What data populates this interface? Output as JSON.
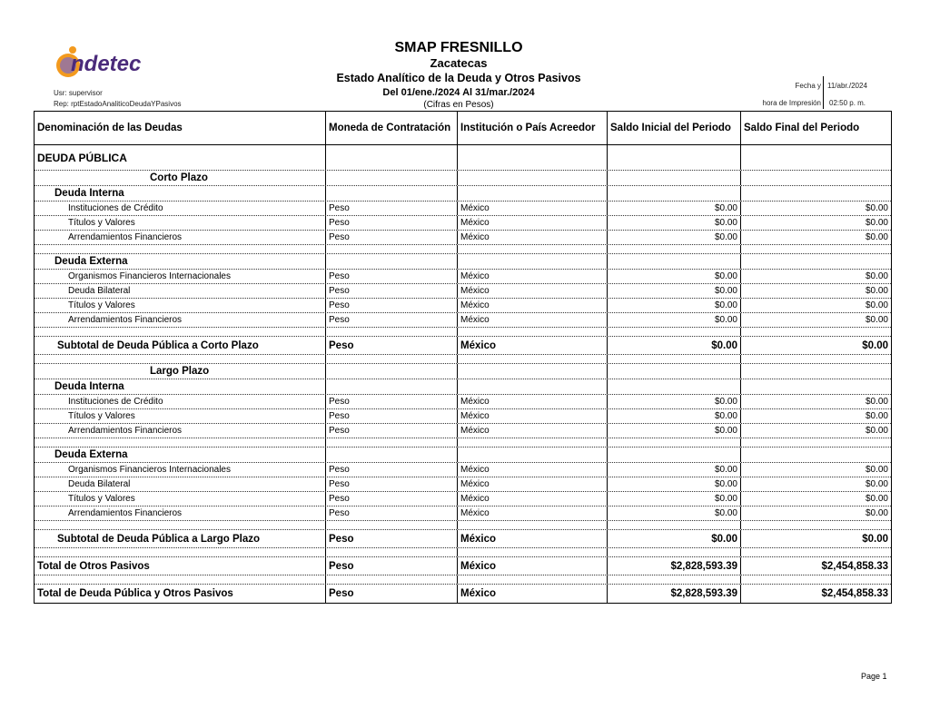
{
  "header": {
    "logo_text": "indetec",
    "org": "SMAP FRESNILLO",
    "state": "Zacatecas",
    "report_title": "Estado Analítico de la Deuda y Otros Pasivos",
    "period": "Del 01/ene./2024 Al 31/mar./2024",
    "units": "(Cifras en Pesos)",
    "user": "Usr: supervisor",
    "report_id": "Rep: rptEstadoAnaliticoDeudaYPasivos",
    "date_label_1": "Fecha y",
    "date_label_2": "hora de Impresión",
    "date_value": "11/abr./2024",
    "time_value": "02:50 p. m."
  },
  "columns": [
    "Denominación de las Deudas",
    "Moneda de Contratación",
    "Institución o País Acreedor",
    "Saldo Inicial del Periodo",
    "Saldo Final del Periodo"
  ],
  "rows": [
    {
      "type": "section",
      "cells": [
        "DEUDA PÚBLICA",
        "",
        "",
        "",
        ""
      ]
    },
    {
      "type": "term",
      "cells": [
        "Corto Plazo",
        "",
        "",
        "",
        ""
      ]
    },
    {
      "type": "group",
      "cells": [
        "Deuda Interna",
        "",
        "",
        "",
        ""
      ]
    },
    {
      "type": "item",
      "cells": [
        "Instituciones de Crédito",
        "Peso",
        "México",
        "$0.00",
        "$0.00"
      ]
    },
    {
      "type": "item",
      "cells": [
        "Títulos y Valores",
        "Peso",
        "México",
        "$0.00",
        "$0.00"
      ]
    },
    {
      "type": "item",
      "cells": [
        "Arrendamientos Financieros",
        "Peso",
        "México",
        "$0.00",
        "$0.00"
      ]
    },
    {
      "type": "blank",
      "cells": [
        "",
        "",
        "",
        "",
        ""
      ]
    },
    {
      "type": "group",
      "cells": [
        "Deuda Externa",
        "",
        "",
        "",
        ""
      ]
    },
    {
      "type": "item",
      "cells": [
        "Organismos Financieros Internacionales",
        "Peso",
        "México",
        "$0.00",
        "$0.00"
      ]
    },
    {
      "type": "item",
      "cells": [
        "Deuda Bilateral",
        "Peso",
        "México",
        "$0.00",
        "$0.00"
      ]
    },
    {
      "type": "item",
      "cells": [
        "Títulos y Valores",
        "Peso",
        "México",
        "$0.00",
        "$0.00"
      ]
    },
    {
      "type": "item",
      "cells": [
        "Arrendamientos Financieros",
        "Peso",
        "México",
        "$0.00",
        "$0.00"
      ]
    },
    {
      "type": "blank",
      "cells": [
        "",
        "",
        "",
        "",
        ""
      ]
    },
    {
      "type": "subtotal",
      "cells": [
        "Subtotal de Deuda Pública a Corto Plazo",
        "Peso",
        "México",
        "$0.00",
        "$0.00"
      ]
    },
    {
      "type": "blank",
      "cells": [
        "",
        "",
        "",
        "",
        ""
      ]
    },
    {
      "type": "term",
      "cells": [
        "Largo Plazo",
        "",
        "",
        "",
        ""
      ]
    },
    {
      "type": "group",
      "cells": [
        "Deuda Interna",
        "",
        "",
        "",
        ""
      ]
    },
    {
      "type": "item",
      "cells": [
        "Instituciones de Crédito",
        "Peso",
        "México",
        "$0.00",
        "$0.00"
      ]
    },
    {
      "type": "item",
      "cells": [
        "Títulos y Valores",
        "Peso",
        "México",
        "$0.00",
        "$0.00"
      ]
    },
    {
      "type": "item",
      "cells": [
        "Arrendamientos Financieros",
        "Peso",
        "México",
        "$0.00",
        "$0.00"
      ]
    },
    {
      "type": "blank",
      "cells": [
        "",
        "",
        "",
        "",
        ""
      ]
    },
    {
      "type": "group",
      "cells": [
        "Deuda Externa",
        "",
        "",
        "",
        ""
      ]
    },
    {
      "type": "item",
      "cells": [
        "Organismos Financieros Internacionales",
        "Peso",
        "México",
        "$0.00",
        "$0.00"
      ]
    },
    {
      "type": "item",
      "cells": [
        "Deuda Bilateral",
        "Peso",
        "México",
        "$0.00",
        "$0.00"
      ]
    },
    {
      "type": "item",
      "cells": [
        "Títulos y Valores",
        "Peso",
        "México",
        "$0.00",
        "$0.00"
      ]
    },
    {
      "type": "item",
      "cells": [
        "Arrendamientos Financieros",
        "Peso",
        "México",
        "$0.00",
        "$0.00"
      ]
    },
    {
      "type": "blank",
      "cells": [
        "",
        "",
        "",
        "",
        ""
      ]
    },
    {
      "type": "subtotal",
      "cells": [
        "Subtotal de Deuda Pública a Largo Plazo",
        "Peso",
        "México",
        "$0.00",
        "$0.00"
      ]
    },
    {
      "type": "blank",
      "cells": [
        "",
        "",
        "",
        "",
        ""
      ]
    },
    {
      "type": "total",
      "cells": [
        "Total de Otros Pasivos",
        "Peso",
        "México",
        "$2,828,593.39",
        "$2,454,858.33"
      ]
    },
    {
      "type": "blank",
      "cells": [
        "",
        "",
        "",
        "",
        ""
      ]
    },
    {
      "type": "total",
      "cells": [
        "Total de Deuda Pública y Otros Pasivos",
        "Peso",
        "México",
        "$2,828,593.39",
        "$2,454,858.33"
      ]
    }
  ],
  "footer": {
    "page": "Page 1"
  },
  "colors": {
    "logo_orange": "#f39a1e",
    "logo_purple": "#4a2a7a"
  }
}
